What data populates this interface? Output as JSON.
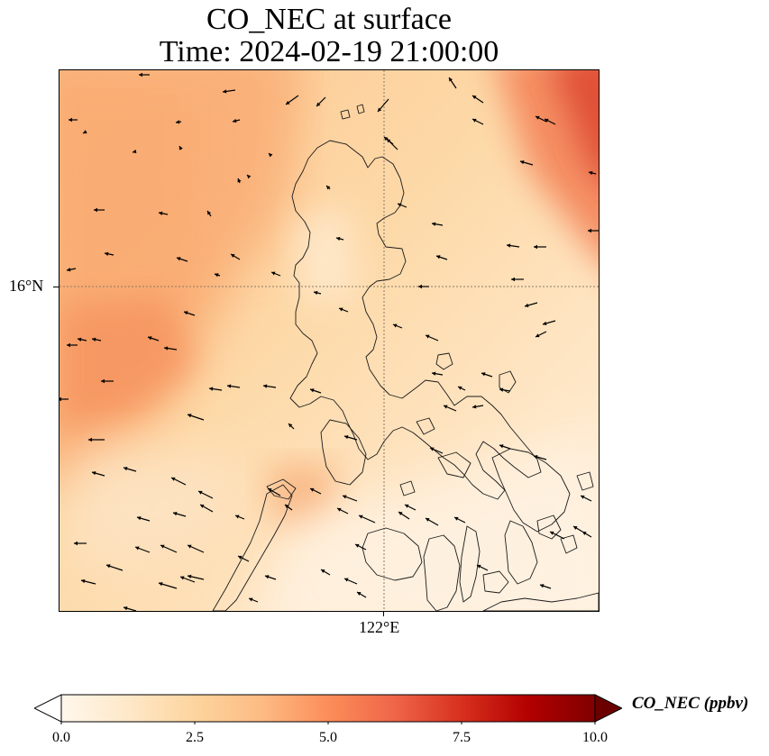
{
  "title": {
    "line1": "CO_NEC at surface",
    "line2": "Time: 2024-02-19 21:00:00"
  },
  "map": {
    "lat_label": "16°N",
    "lon_label": "122°E",
    "gridline_color": "#8a7a66"
  },
  "colorbar": {
    "label": "CO_NEC (ppbv)",
    "ticks": [
      "0.0",
      "2.5",
      "5.0",
      "7.5",
      "10.0"
    ],
    "range": [
      0,
      10
    ],
    "colormap": "OrRd",
    "colors": [
      "#fff7ec",
      "#fee8c8",
      "#fdd49e",
      "#fdbb84",
      "#fc8d59",
      "#ef6548",
      "#d7301f",
      "#b30000",
      "#7f0000"
    ]
  }
}
